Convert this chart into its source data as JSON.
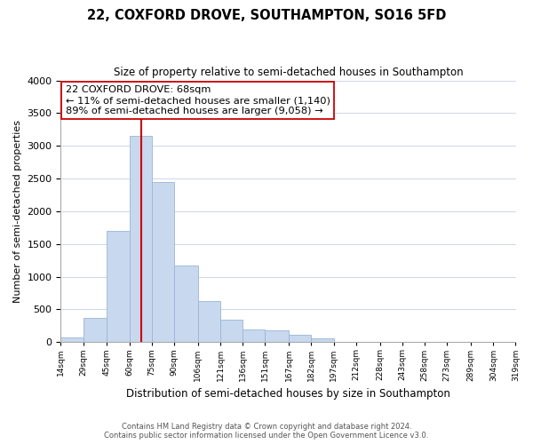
{
  "title": "22, COXFORD DROVE, SOUTHAMPTON, SO16 5FD",
  "subtitle": "Size of property relative to semi-detached houses in Southampton",
  "xlabel": "Distribution of semi-detached houses by size in Southampton",
  "ylabel": "Number of semi-detached properties",
  "footnote1": "Contains HM Land Registry data © Crown copyright and database right 2024.",
  "footnote2": "Contains public sector information licensed under the Open Government Licence v3.0.",
  "annotation_line1": "22 COXFORD DROVE: 68sqm",
  "annotation_line2": "← 11% of semi-detached houses are smaller (1,140)",
  "annotation_line3": "89% of semi-detached houses are larger (9,058) →",
  "property_size": 68,
  "bar_color": "#c8d8ee",
  "bar_edge_color": "#9ab5d5",
  "vline_color": "#cc0000",
  "annotation_box_color": "#ffffff",
  "annotation_box_edge": "#cc0000",
  "background_color": "#ffffff",
  "grid_color": "#cdd8e8",
  "bin_edges": [
    14,
    29,
    45,
    60,
    75,
    90,
    106,
    121,
    136,
    151,
    167,
    182,
    197,
    212,
    228,
    243,
    258,
    273,
    289,
    304,
    319
  ],
  "bin_counts": [
    75,
    370,
    1700,
    3150,
    2450,
    1170,
    630,
    345,
    195,
    185,
    115,
    55,
    10,
    5,
    2,
    1,
    1,
    0,
    0,
    0
  ],
  "ylim": [
    0,
    4000
  ],
  "yticks": [
    0,
    500,
    1000,
    1500,
    2000,
    2500,
    3000,
    3500,
    4000
  ]
}
